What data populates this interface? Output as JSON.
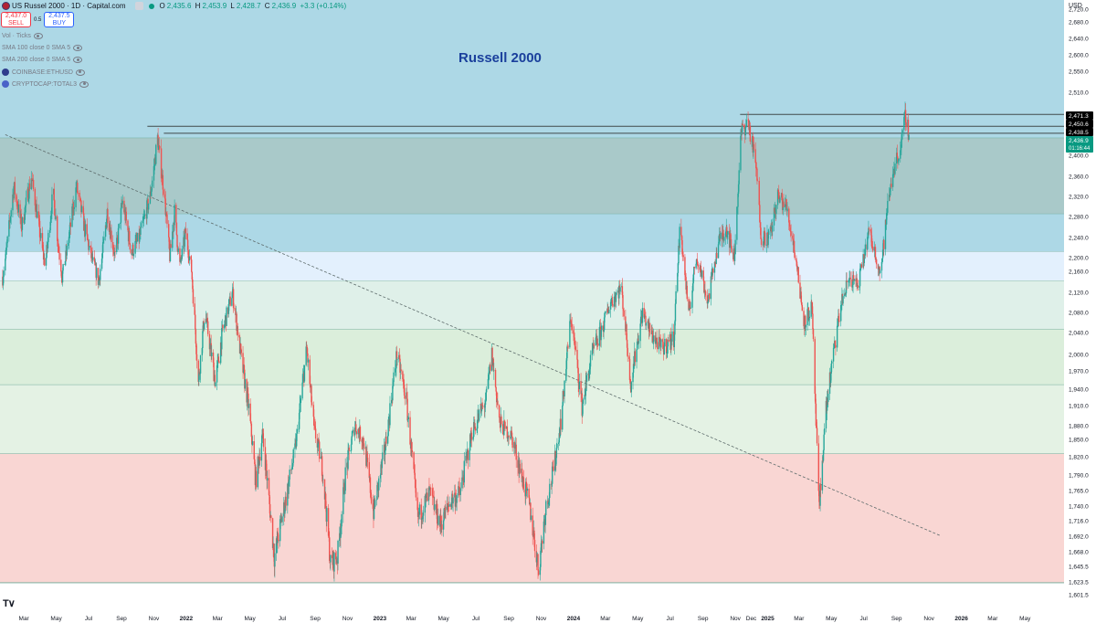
{
  "header": {
    "symbol": "US Russel 2000 · 1D · Capital.com",
    "o_label": "O",
    "o": "2,435.6",
    "h_label": "H",
    "h": "2,453.9",
    "l_label": "L",
    "l": "2,428.7",
    "c_label": "C",
    "c": "2,436.9",
    "change": "+3.3 (+0.14%)"
  },
  "trade": {
    "sell_price": "2,437.0",
    "sell_label": "SELL",
    "spread": "0.5",
    "buy_price": "2,437.5",
    "buy_label": "BUY"
  },
  "indicators": [
    {
      "label": "Vol · Ticks",
      "icon": "eye-icon"
    },
    {
      "label": "SMA 100 close 0 SMA 5",
      "icon": "eye-icon"
    },
    {
      "label": "SMA 200 close 0 SMA 5",
      "icon": "eye-icon"
    },
    {
      "label": "COINBASE:ETHUSD",
      "icon": "coinbase-icon"
    },
    {
      "label": "CRYPTOCAP:TOTAL3",
      "icon": "cryptocap-icon"
    }
  ],
  "chart_data": {
    "type": "candlestick",
    "title": "Russell 2000",
    "currency": "USD",
    "y_ticks": [
      "2,720.0",
      "2,680.0",
      "2,640.0",
      "2,600.0",
      "2,550.0",
      "2,510.0",
      "2,400.0",
      "2,360.0",
      "2,320.0",
      "2,280.0",
      "2,240.0",
      "2,200.0",
      "2,160.0",
      "2,120.0",
      "2,080.0",
      "2,040.0",
      "2,000.0",
      "1,970.0",
      "1,940.0",
      "1,910.0",
      "1,880.0",
      "1,850.0",
      "1,820.0",
      "1,790.0",
      "1,765.0",
      "1,740.0",
      "1,716.0",
      "1,692.0",
      "1,668.0",
      "1,645.5",
      "1,623.5",
      "1,601.5"
    ],
    "x_ticks": [
      "Mar",
      "May",
      "Jul",
      "Sep",
      "Nov",
      "2022",
      "Mar",
      "May",
      "Jul",
      "Sep",
      "Nov",
      "2023",
      "Mar",
      "May",
      "Jul",
      "Sep",
      "Nov",
      "2024",
      "Mar",
      "May",
      "Jul",
      "Sep",
      "Nov",
      "Dec",
      "2025",
      "Mar",
      "May",
      "Jul",
      "Sep",
      "Nov",
      "2026",
      "Mar",
      "May"
    ],
    "price_badges": [
      {
        "value": "2,471.3",
        "color": "#000000"
      },
      {
        "value": "2,450.6",
        "color": "#000000"
      },
      {
        "value": "2,438.5",
        "color": "#000000"
      },
      {
        "value": "2,436.9",
        "countdown": "01:16:44",
        "color": "#089981"
      }
    ],
    "horizontal_levels": [
      2450.6,
      2438.5,
      2471.3
    ],
    "zones": [
      {
        "from": 2430,
        "to": 2750,
        "color": "#add8e6"
      },
      {
        "from": 2285,
        "to": 2430,
        "color": "#a9c9c9"
      },
      {
        "from": 2212,
        "to": 2285,
        "color": "#add8e6"
      },
      {
        "from": 2142,
        "to": 2212,
        "color": "#e3f0fd"
      },
      {
        "from": 2046,
        "to": 2142,
        "color": "#dff0e9"
      },
      {
        "from": 1947,
        "to": 2046,
        "color": "#dbeedb"
      },
      {
        "from": 1825,
        "to": 1947,
        "color": "#e4f2e4"
      },
      {
        "from": 1622,
        "to": 1825,
        "color": "#f9d6d3"
      }
    ],
    "trendline": {
      "start": {
        "date": "2021-01-25",
        "price": 2436
      },
      "end": {
        "date": "2025-11-22",
        "price": 1693
      }
    },
    "price_path": [
      [
        "2021-01-20",
        2150
      ],
      [
        "2021-02-10",
        2340
      ],
      [
        "2021-02-25",
        2260
      ],
      [
        "2021-03-15",
        2360
      ],
      [
        "2021-04-10",
        2180
      ],
      [
        "2021-04-25",
        2330
      ],
      [
        "2021-05-12",
        2150
      ],
      [
        "2021-06-08",
        2340
      ],
      [
        "2021-06-25",
        2250
      ],
      [
        "2021-07-20",
        2140
      ],
      [
        "2021-08-05",
        2290
      ],
      [
        "2021-08-20",
        2200
      ],
      [
        "2021-09-03",
        2310
      ],
      [
        "2021-09-20",
        2210
      ],
      [
        "2021-10-05",
        2240
      ],
      [
        "2021-10-25",
        2320
      ],
      [
        "2021-11-08",
        2430
      ],
      [
        "2021-11-20",
        2330
      ],
      [
        "2021-12-01",
        2200
      ],
      [
        "2021-12-10",
        2290
      ],
      [
        "2021-12-20",
        2180
      ],
      [
        "2021-12-31",
        2250
      ],
      [
        "2022-01-10",
        2180
      ],
      [
        "2022-01-24",
        1950
      ],
      [
        "2022-02-05",
        2080
      ],
      [
        "2022-02-25",
        1950
      ],
      [
        "2022-03-10",
        2040
      ],
      [
        "2022-03-29",
        2120
      ],
      [
        "2022-04-15",
        1990
      ],
      [
        "2022-04-30",
        1900
      ],
      [
        "2022-05-12",
        1780
      ],
      [
        "2022-05-25",
        1860
      ],
      [
        "2022-06-16",
        1660
      ],
      [
        "2022-07-05",
        1740
      ],
      [
        "2022-07-25",
        1830
      ],
      [
        "2022-08-16",
        2010
      ],
      [
        "2022-08-30",
        1870
      ],
      [
        "2022-09-15",
        1800
      ],
      [
        "2022-09-30",
        1650
      ],
      [
        "2022-10-13",
        1660
      ],
      [
        "2022-10-28",
        1790
      ],
      [
        "2022-11-15",
        1880
      ],
      [
        "2022-12-01",
        1850
      ],
      [
        "2022-12-20",
        1730
      ],
      [
        "2023-01-10",
        1830
      ],
      [
        "2023-02-02",
        2000
      ],
      [
        "2023-02-20",
        1920
      ],
      [
        "2023-03-13",
        1720
      ],
      [
        "2023-04-05",
        1760
      ],
      [
        "2023-04-25",
        1710
      ],
      [
        "2023-05-15",
        1750
      ],
      [
        "2023-06-01",
        1760
      ],
      [
        "2023-06-25",
        1870
      ],
      [
        "2023-07-20",
        1920
      ],
      [
        "2023-07-31",
        2000
      ],
      [
        "2023-08-15",
        1880
      ],
      [
        "2023-09-05",
        1860
      ],
      [
        "2023-09-25",
        1790
      ],
      [
        "2023-10-10",
        1740
      ],
      [
        "2023-10-27",
        1640
      ],
      [
        "2023-11-10",
        1740
      ],
      [
        "2023-11-25",
        1800
      ],
      [
        "2023-12-10",
        1900
      ],
      [
        "2023-12-27",
        2070
      ],
      [
        "2024-01-17",
        1910
      ],
      [
        "2024-02-05",
        2000
      ],
      [
        "2024-02-25",
        2050
      ],
      [
        "2024-03-10",
        2100
      ],
      [
        "2024-03-31",
        2130
      ],
      [
        "2024-04-18",
        1950
      ],
      [
        "2024-05-10",
        2080
      ],
      [
        "2024-05-25",
        2040
      ],
      [
        "2024-06-15",
        2010
      ],
      [
        "2024-07-08",
        2030
      ],
      [
        "2024-07-20",
        2270
      ],
      [
        "2024-08-05",
        2070
      ],
      [
        "2024-08-20",
        2200
      ],
      [
        "2024-09-10",
        2100
      ],
      [
        "2024-09-30",
        2230
      ],
      [
        "2024-10-15",
        2260
      ],
      [
        "2024-10-30",
        2200
      ],
      [
        "2024-11-12",
        2440
      ],
      [
        "2024-11-25",
        2460
      ],
      [
        "2024-12-10",
        2380
      ],
      [
        "2024-12-20",
        2240
      ],
      [
        "2025-01-05",
        2240
      ],
      [
        "2025-01-20",
        2320
      ],
      [
        "2025-02-05",
        2300
      ],
      [
        "2025-02-20",
        2220
      ],
      [
        "2025-03-10",
        2060
      ],
      [
        "2025-03-25",
        2090
      ],
      [
        "2025-04-08",
        1730
      ],
      [
        "2025-04-20",
        1900
      ],
      [
        "2025-05-05",
        2000
      ],
      [
        "2025-05-20",
        2100
      ],
      [
        "2025-06-05",
        2150
      ],
      [
        "2025-06-20",
        2130
      ],
      [
        "2025-07-10",
        2250
      ],
      [
        "2025-07-20",
        2220
      ],
      [
        "2025-08-01",
        2160
      ],
      [
        "2025-08-15",
        2300
      ],
      [
        "2025-08-25",
        2370
      ],
      [
        "2025-09-10",
        2420
      ],
      [
        "2025-09-18",
        2471
      ],
      [
        "2025-09-24",
        2437
      ]
    ]
  }
}
